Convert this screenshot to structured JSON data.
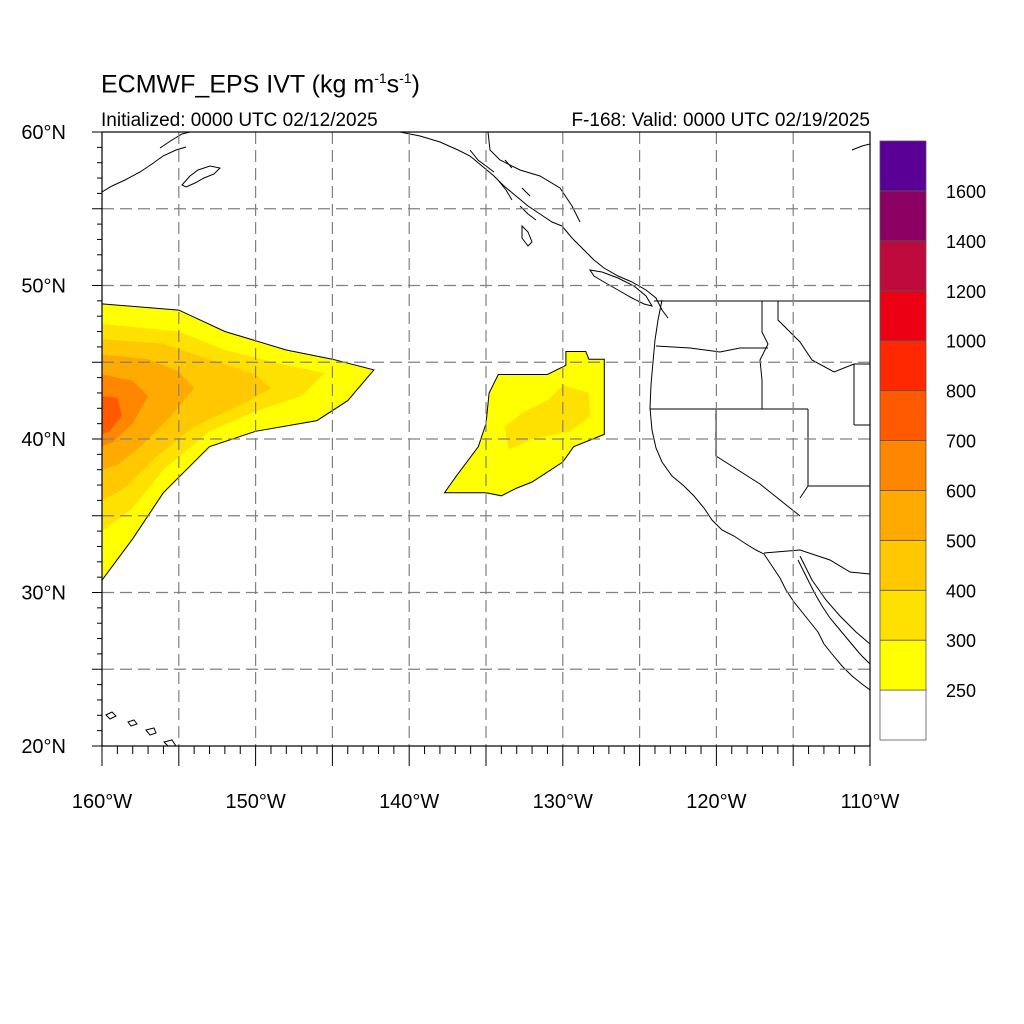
{
  "header": {
    "title_main": "ECMWF_EPS IVT (kg m",
    "title_exp1": "-1",
    "title_mid": "s",
    "title_exp2": "-1",
    "title_end": ")",
    "initialized": "Initialized: 0000 UTC 02/12/2025",
    "valid": "F-168: Valid: 0000 UTC 02/19/2025"
  },
  "map": {
    "lon_range": [
      -160,
      -110
    ],
    "lat_range": [
      20,
      60
    ],
    "grid_lon_step": 5,
    "grid_lat_step": 5,
    "lat_ticks": [
      {
        "lat": 60,
        "label": "60°N"
      },
      {
        "lat": 50,
        "label": "50°N"
      },
      {
        "lat": 40,
        "label": "40°N"
      },
      {
        "lat": 30,
        "label": "30°N"
      },
      {
        "lat": 20,
        "label": "20°N"
      }
    ],
    "lon_ticks": [
      {
        "lon": -160,
        "label": "160°W"
      },
      {
        "lon": -150,
        "label": "150°W"
      },
      {
        "lon": -140,
        "label": "140°W"
      },
      {
        "lon": -130,
        "label": "130°W"
      },
      {
        "lon": -120,
        "label": "120°W"
      },
      {
        "lon": -110,
        "label": "110°W"
      }
    ]
  },
  "chart_data": {
    "type": "heatmap",
    "variable": "IVT",
    "units": "kg m-1 s-1",
    "features": [
      {
        "name": "western-plume",
        "levels": [
          {
            "level": 250,
            "color": "#ffff00",
            "polygon": [
              [
                -160,
                48.8
              ],
              [
                -155,
                48.4
              ],
              [
                -152,
                47.0
              ],
              [
                -148,
                45.8
              ],
              [
                -145,
                45.2
              ],
              [
                -142.3,
                44.5
              ],
              [
                -144,
                42.5
              ],
              [
                -146,
                41.2
              ],
              [
                -150,
                40.5
              ],
              [
                -153,
                39.5
              ],
              [
                -156,
                36.5
              ],
              [
                -158,
                33.5
              ],
              [
                -160,
                30.8
              ]
            ]
          },
          {
            "level": 300,
            "color": "#ffe100",
            "polygon": [
              [
                -160,
                47.5
              ],
              [
                -155,
                47.0
              ],
              [
                -152,
                45.8
              ],
              [
                -148,
                44.8
              ],
              [
                -145.5,
                44.3
              ],
              [
                -147,
                42.8
              ],
              [
                -150,
                41.8
              ],
              [
                -153,
                40.5
              ],
              [
                -156,
                38.0
              ],
              [
                -158,
                35.5
              ],
              [
                -160,
                34.0
              ]
            ]
          },
          {
            "level": 400,
            "color": "#ffc800",
            "polygon": [
              [
                -160,
                46.5
              ],
              [
                -156,
                46.2
              ],
              [
                -153,
                45.2
              ],
              [
                -150,
                44.2
              ],
              [
                -149,
                43.3
              ],
              [
                -151,
                42.2
              ],
              [
                -154,
                40.8
              ],
              [
                -156.5,
                38.8
              ],
              [
                -158.5,
                36.8
              ],
              [
                -160,
                36.0
              ]
            ]
          },
          {
            "level": 500,
            "color": "#ffaa00",
            "polygon": [
              [
                -160,
                45.5
              ],
              [
                -157,
                45.2
              ],
              [
                -155,
                44.4
              ],
              [
                -154,
                43.3
              ],
              [
                -155.5,
                41.5
              ],
              [
                -157.5,
                39.5
              ],
              [
                -159,
                38.3
              ],
              [
                -160,
                38.0
              ]
            ]
          },
          {
            "level": 600,
            "color": "#ff8700",
            "polygon": [
              [
                -160,
                44.2
              ],
              [
                -158,
                43.8
              ],
              [
                -157,
                42.8
              ],
              [
                -158,
                41.0
              ],
              [
                -159.3,
                39.8
              ],
              [
                -160,
                39.5
              ]
            ]
          },
          {
            "level": 700,
            "color": "#ff5a00",
            "polygon": [
              [
                -160,
                42.8
              ],
              [
                -159,
                42.7
              ],
              [
                -158.7,
                41.5
              ],
              [
                -159.5,
                40.5
              ],
              [
                -160,
                40.3
              ]
            ]
          }
        ]
      },
      {
        "name": "eastern-blob",
        "levels": [
          {
            "level": 250,
            "color": "#ffff00",
            "polygon": [
              [
                -129.8,
                45.7
              ],
              [
                -128.5,
                45.7
              ],
              [
                -128.3,
                45.2
              ],
              [
                -127.3,
                45.2
              ],
              [
                -127.3,
                40.3
              ],
              [
                -129.3,
                39.5
              ],
              [
                -130,
                38.5
              ],
              [
                -132,
                37.2
              ],
              [
                -133,
                36.8
              ],
              [
                -134,
                36.3
              ],
              [
                -135,
                36.5
              ],
              [
                -137.7,
                36.5
              ],
              [
                -137,
                37.5
              ],
              [
                -135.5,
                39.5
              ],
              [
                -135,
                41
              ],
              [
                -134.8,
                43
              ],
              [
                -134.2,
                44.2
              ],
              [
                -131,
                44.2
              ],
              [
                -129.8,
                44.8
              ]
            ]
          },
          {
            "level": 300,
            "color": "#ffe100",
            "polygon": [
              [
                -130,
                43.5
              ],
              [
                -128.3,
                43.0
              ],
              [
                -128.2,
                41.5
              ],
              [
                -129.5,
                40.5
              ],
              [
                -132,
                40.0
              ],
              [
                -133.5,
                39.3
              ],
              [
                -133.8,
                40.8
              ],
              [
                -132.5,
                41.8
              ],
              [
                -131,
                42.5
              ]
            ]
          }
        ]
      }
    ],
    "colorbar": {
      "levels": [
        250,
        300,
        400,
        500,
        600,
        700,
        800,
        1000,
        1200,
        1400,
        1600
      ],
      "colors": [
        "#ffffff",
        "#ffff00",
        "#ffe100",
        "#ffc800",
        "#ffaa00",
        "#ff8700",
        "#ff5a00",
        "#ff2800",
        "#eb0014",
        "#be0a3c",
        "#8c0064",
        "#5a0096"
      ]
    }
  }
}
